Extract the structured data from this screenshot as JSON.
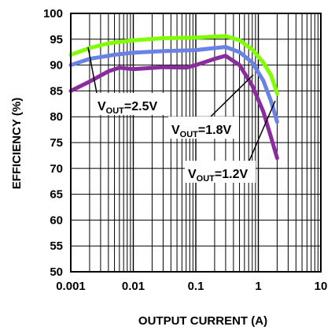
{
  "chart_data": {
    "type": "line",
    "title": "",
    "xlabel": "OUTPUT CURRENT (A)",
    "ylabel": "EFFICIENCY (%)",
    "x_scale": "log",
    "xlim": [
      0.001,
      10
    ],
    "ylim": [
      50,
      100
    ],
    "grid": true,
    "x_ticks": [
      "0.001",
      "0.01",
      "0.1",
      "1",
      "10"
    ],
    "y_ticks": [
      "50",
      "55",
      "60",
      "65",
      "70",
      "75",
      "80",
      "85",
      "90",
      "95",
      "100"
    ],
    "series": [
      {
        "name": "VOUT=2.5V",
        "label_main": "V",
        "label_sub": "OUT",
        "label_rest": "=2.5V",
        "color": "#80ff00",
        "points": [
          [
            0.001,
            92
          ],
          [
            0.002,
            93.3
          ],
          [
            0.004,
            94.2
          ],
          [
            0.01,
            94.8
          ],
          [
            0.03,
            95.2
          ],
          [
            0.1,
            95.3
          ],
          [
            0.2,
            95.5
          ],
          [
            0.3,
            95.6
          ],
          [
            0.5,
            94.8
          ],
          [
            0.8,
            93
          ],
          [
            1.2,
            90.5
          ],
          [
            1.6,
            88
          ],
          [
            2,
            84.5
          ]
        ]
      },
      {
        "name": "VOUT=1.8V",
        "label_main": "V",
        "label_sub": "OUT",
        "label_rest": "=1.8V",
        "color": "#6a82e6",
        "points": [
          [
            0.001,
            90
          ],
          [
            0.002,
            91.2
          ],
          [
            0.005,
            92
          ],
          [
            0.01,
            92.4
          ],
          [
            0.03,
            92.7
          ],
          [
            0.1,
            92.9
          ],
          [
            0.2,
            93.3
          ],
          [
            0.3,
            93.5
          ],
          [
            0.5,
            92.5
          ],
          [
            0.8,
            90.5
          ],
          [
            1.2,
            87
          ],
          [
            1.6,
            83
          ],
          [
            2,
            79
          ]
        ]
      },
      {
        "name": "VOUT=1.2V",
        "label_main": "V",
        "label_sub": "OUT",
        "label_rest": "=1.2V",
        "color": "#8a2ca0",
        "points": [
          [
            0.001,
            85
          ],
          [
            0.002,
            86.8
          ],
          [
            0.004,
            88.8
          ],
          [
            0.006,
            89.5
          ],
          [
            0.01,
            89.2
          ],
          [
            0.03,
            89.6
          ],
          [
            0.07,
            89.5
          ],
          [
            0.1,
            90
          ],
          [
            0.2,
            91.2
          ],
          [
            0.3,
            91.8
          ],
          [
            0.5,
            90
          ],
          [
            0.8,
            86
          ],
          [
            1.2,
            81
          ],
          [
            1.6,
            76
          ],
          [
            2,
            72
          ]
        ]
      }
    ]
  }
}
